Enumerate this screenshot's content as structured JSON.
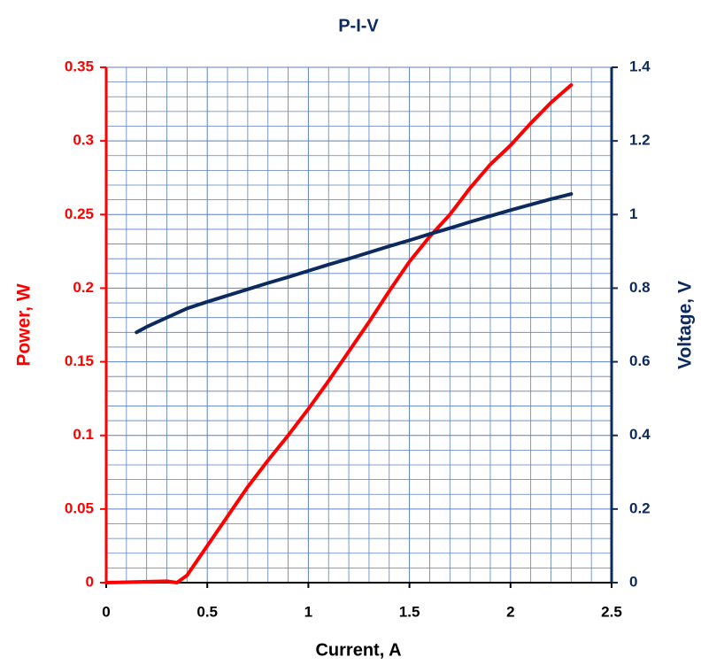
{
  "chart_data": {
    "type": "line",
    "title": "P-I-V",
    "x_label": "Current, A",
    "y_label": "Power, W",
    "y2_label": "Voltage, V",
    "xlim": [
      0,
      2.5
    ],
    "xticks": [
      0,
      0.5,
      1,
      1.5,
      2,
      2.5
    ],
    "ylim": [
      0,
      0.35
    ],
    "yticks": [
      0,
      0.05,
      0.1,
      0.15,
      0.2,
      0.25,
      0.3,
      0.35
    ],
    "y2lim": [
      0,
      1.4
    ],
    "y2ticks": [
      0,
      0.2,
      0.4,
      0.6,
      0.8,
      1,
      1.2,
      1.4
    ],
    "grid": true,
    "y_color": "#ff0000",
    "y2_color": "#0d2a5e",
    "series": [
      {
        "name": "Power",
        "color": "#ff0000",
        "axis": "y",
        "x": [
          0,
          0.3,
          0.35,
          0.4,
          0.5,
          0.6,
          0.7,
          0.8,
          0.9,
          1.0,
          1.1,
          1.2,
          1.3,
          1.4,
          1.5,
          1.6,
          1.7,
          1.8,
          1.9,
          2.0,
          2.1,
          2.2,
          2.3
        ],
        "values": [
          0,
          0.001,
          0,
          0.005,
          0.025,
          0.045,
          0.065,
          0.083,
          0.1,
          0.118,
          0.137,
          0.157,
          0.177,
          0.198,
          0.218,
          0.235,
          0.25,
          0.268,
          0.284,
          0.297,
          0.312,
          0.326,
          0.338
        ]
      },
      {
        "name": "Voltage",
        "color": "#0d2a5e",
        "axis": "y2",
        "x": [
          0.15,
          0.2,
          0.3,
          0.4,
          0.5,
          0.6,
          0.7,
          0.8,
          0.9,
          1.0,
          1.1,
          1.2,
          1.3,
          1.4,
          1.5,
          1.6,
          1.7,
          1.8,
          1.9,
          2.0,
          2.1,
          2.2,
          2.3
        ],
        "values": [
          0.68,
          0.695,
          0.72,
          0.745,
          0.763,
          0.78,
          0.797,
          0.814,
          0.83,
          0.847,
          0.864,
          0.88,
          0.897,
          0.914,
          0.93,
          0.947,
          0.963,
          0.98,
          0.996,
          1.012,
          1.027,
          1.042,
          1.056
        ]
      }
    ]
  }
}
